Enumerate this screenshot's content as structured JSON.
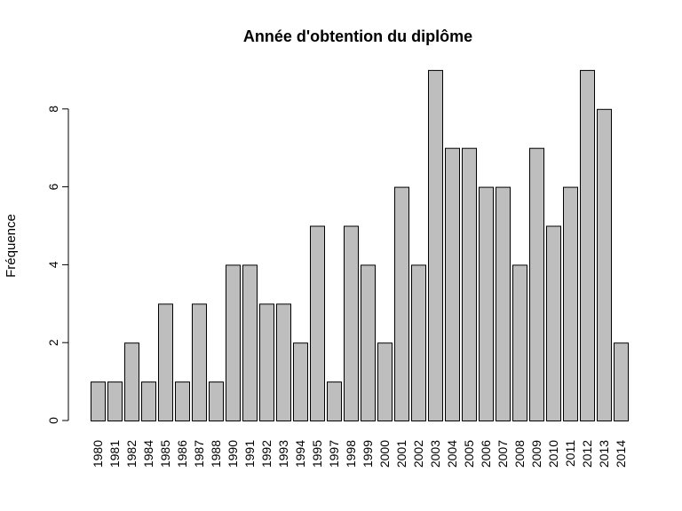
{
  "chart_data": {
    "type": "bar",
    "title": "Année d'obtention du diplôme",
    "xlabel": "",
    "ylabel": "Fréquence",
    "categories": [
      "1980",
      "1981",
      "1982",
      "1984",
      "1985",
      "1986",
      "1987",
      "1988",
      "1990",
      "1991",
      "1992",
      "1993",
      "1994",
      "1995",
      "1997",
      "1998",
      "1999",
      "2000",
      "2001",
      "2002",
      "2003",
      "2004",
      "2005",
      "2006",
      "2007",
      "2008",
      "2009",
      "2010",
      "2011",
      "2012",
      "2013",
      "2014"
    ],
    "values": [
      1,
      1,
      2,
      1,
      3,
      1,
      3,
      1,
      4,
      4,
      3,
      3,
      2,
      5,
      1,
      5,
      4,
      2,
      6,
      4,
      9,
      7,
      7,
      6,
      6,
      4,
      7,
      5,
      6,
      9,
      8,
      2
    ],
    "ylim": [
      0,
      9
    ],
    "yticks": [
      0,
      2,
      4,
      6,
      8
    ],
    "grid": false,
    "bar_color": "#bebebe",
    "bar_edge_color": "#000000"
  }
}
